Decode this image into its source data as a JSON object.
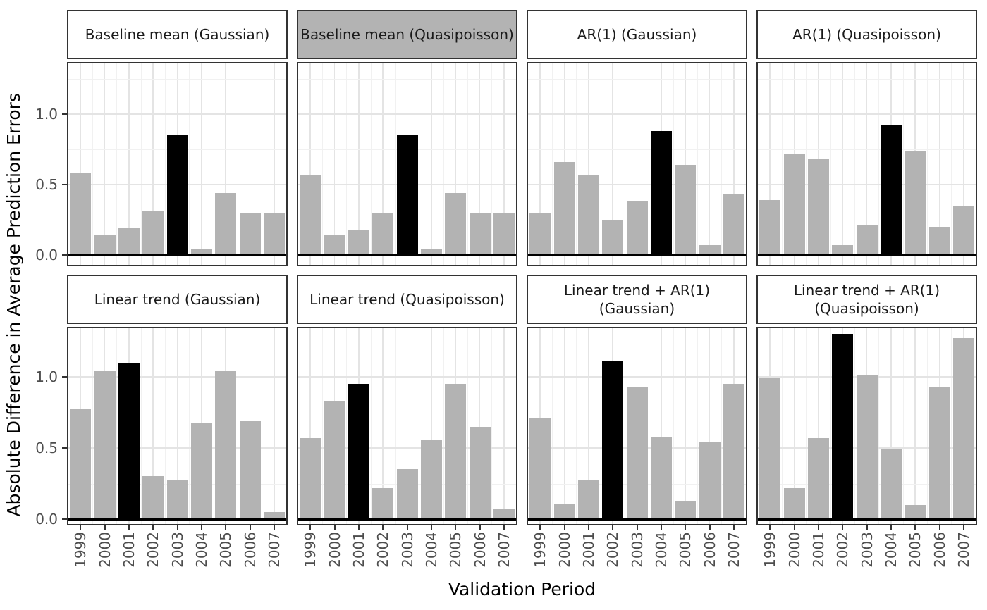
{
  "figure": {
    "y_axis_title": "Absolute Difference in Average Prediction Errors",
    "x_axis_title": "Validation Period"
  },
  "style": {
    "bar_color": "#b3b3b3",
    "highlight_bar_color": "#000000",
    "strip_highlight_bg": "#b3b3b3",
    "strip_bg": "#ffffff",
    "panel_border": "#333333",
    "grid_major": "#e4e4e4",
    "grid_minor": "#f1f1f1",
    "tick_label_color": "#4d4d4d",
    "zero_line_color": "#000000"
  },
  "chart_data": {
    "type": "bar",
    "title": "",
    "xlabel": "Validation Period",
    "ylabel": "Absolute Difference in Average Prediction Errors",
    "categories": [
      "1999",
      "2000",
      "2001",
      "2002",
      "2003",
      "2004",
      "2005",
      "2006",
      "2007"
    ],
    "y_ticks": [
      "0.0",
      "0.5",
      "1.0"
    ],
    "y_tick_values": [
      0,
      0.5,
      1.0
    ],
    "ylim": [
      0,
      1.4
    ],
    "grid": true,
    "legend": "none",
    "facets": {
      "rows": 2,
      "cols": 4
    },
    "panels": [
      {
        "title": "Baseline mean (Gaussian)",
        "title_lines": [
          "Baseline mean (Gaussian)"
        ],
        "strip_highlighted": false,
        "row": 0,
        "col": 0,
        "highlight_category": "2003",
        "values": [
          0.58,
          0.14,
          0.19,
          0.31,
          0.85,
          0.04,
          0.44,
          0.3,
          0.3
        ]
      },
      {
        "title": "Baseline mean (Quasipoisson)",
        "title_lines": [
          "Baseline mean (Quasipoisson)"
        ],
        "strip_highlighted": true,
        "row": 0,
        "col": 1,
        "highlight_category": "2003",
        "values": [
          0.57,
          0.14,
          0.18,
          0.3,
          0.85,
          0.04,
          0.44,
          0.3,
          0.3
        ]
      },
      {
        "title": "AR(1) (Gaussian)",
        "title_lines": [
          "AR(1) (Gaussian)"
        ],
        "strip_highlighted": false,
        "row": 0,
        "col": 2,
        "highlight_category": "2004",
        "values": [
          0.3,
          0.66,
          0.57,
          0.25,
          0.38,
          0.88,
          0.64,
          0.07,
          0.43
        ]
      },
      {
        "title": "AR(1) (Quasipoisson)",
        "title_lines": [
          "AR(1) (Quasipoisson)"
        ],
        "strip_highlighted": false,
        "row": 0,
        "col": 3,
        "highlight_category": "2004",
        "values": [
          0.39,
          0.72,
          0.68,
          0.07,
          0.21,
          0.92,
          0.74,
          0.2,
          0.35
        ]
      },
      {
        "title": "Linear trend (Gaussian)",
        "title_lines": [
          "Linear trend (Gaussian)"
        ],
        "strip_highlighted": false,
        "row": 1,
        "col": 0,
        "highlight_category": "2001",
        "values": [
          0.77,
          1.04,
          1.1,
          0.3,
          0.27,
          0.68,
          1.04,
          0.69,
          0.05
        ]
      },
      {
        "title": "Linear trend (Quasipoisson)",
        "title_lines": [
          "Linear trend (Quasipoisson)"
        ],
        "strip_highlighted": false,
        "row": 1,
        "col": 1,
        "highlight_category": "2001",
        "values": [
          0.57,
          0.83,
          0.95,
          0.22,
          0.35,
          0.56,
          0.95,
          0.65,
          0.07
        ]
      },
      {
        "title": "Linear trend + AR(1) (Gaussian)",
        "title_lines": [
          "Linear trend + AR(1)",
          "(Gaussian)"
        ],
        "strip_highlighted": false,
        "row": 1,
        "col": 2,
        "highlight_category": "2002",
        "values": [
          0.71,
          0.11,
          0.27,
          1.11,
          0.93,
          0.58,
          0.13,
          0.54,
          0.95
        ]
      },
      {
        "title": "Linear trend + AR(1) (Quasipoisson)",
        "title_lines": [
          "Linear trend + AR(1)",
          "(Quasipoisson)"
        ],
        "strip_highlighted": false,
        "row": 1,
        "col": 3,
        "highlight_category": "2002",
        "values": [
          0.99,
          0.22,
          0.57,
          1.3,
          1.01,
          0.49,
          0.1,
          0.93,
          1.27
        ]
      }
    ]
  }
}
